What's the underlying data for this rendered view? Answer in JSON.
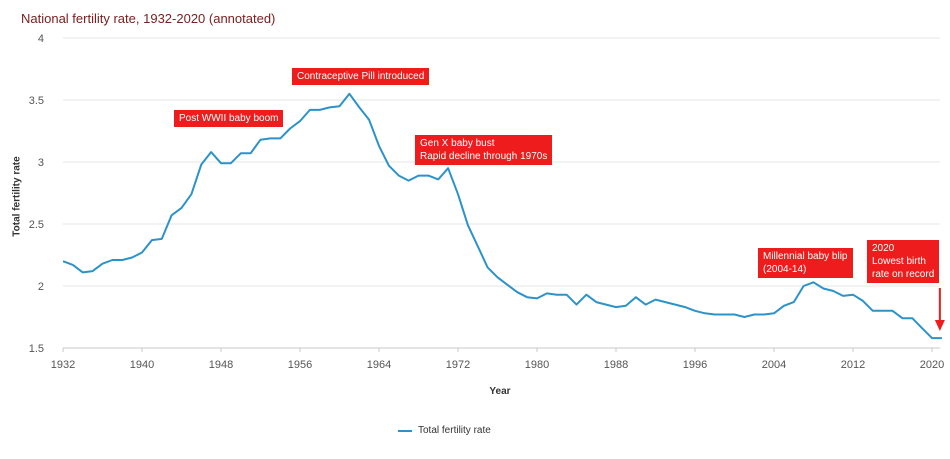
{
  "chart_data": {
    "type": "line",
    "title": "National fertility rate, 1932-2020 (annotated)",
    "xlabel": "Year",
    "ylabel": "Total fertility rate",
    "xlim": [
      1932,
      2021
    ],
    "ylim": [
      1.5,
      4
    ],
    "x_ticks": [
      "1932",
      "1940",
      "1948",
      "1956",
      "1964",
      "1972",
      "1980",
      "1988",
      "1996",
      "2004",
      "2012",
      "2020"
    ],
    "y_ticks": [
      "1.5",
      "2",
      "2.5",
      "3",
      "3.5",
      "4"
    ],
    "grid": "horizontal",
    "legend_position": "bottom",
    "color": "#2b93c9",
    "series": [
      {
        "name": "Total fertility rate",
        "x": [
          1932,
          1933,
          1934,
          1935,
          1936,
          1937,
          1938,
          1939,
          1940,
          1941,
          1942,
          1943,
          1944,
          1945,
          1946,
          1947,
          1948,
          1949,
          1950,
          1951,
          1952,
          1953,
          1954,
          1955,
          1956,
          1957,
          1958,
          1959,
          1960,
          1961,
          1962,
          1963,
          1964,
          1965,
          1966,
          1967,
          1968,
          1969,
          1970,
          1971,
          1972,
          1973,
          1974,
          1975,
          1976,
          1977,
          1978,
          1979,
          1980,
          1981,
          1982,
          1983,
          1984,
          1985,
          1986,
          1987,
          1988,
          1989,
          1990,
          1991,
          1992,
          1993,
          1994,
          1995,
          1996,
          1997,
          1998,
          1999,
          2000,
          2001,
          2002,
          2003,
          2004,
          2005,
          2006,
          2007,
          2008,
          2009,
          2010,
          2011,
          2012,
          2013,
          2014,
          2015,
          2016,
          2017,
          2018,
          2019,
          2020,
          2021
        ],
        "values": [
          2.2,
          2.17,
          2.11,
          2.12,
          2.18,
          2.21,
          2.21,
          2.23,
          2.27,
          2.37,
          2.38,
          2.57,
          2.63,
          2.74,
          2.98,
          3.08,
          2.99,
          2.99,
          3.07,
          3.07,
          3.18,
          3.19,
          3.19,
          3.27,
          3.33,
          3.42,
          3.42,
          3.44,
          3.45,
          3.55,
          3.44,
          3.34,
          3.13,
          2.97,
          2.89,
          2.85,
          2.89,
          2.89,
          2.86,
          2.95,
          2.74,
          2.49,
          2.32,
          2.15,
          2.07,
          2.01,
          1.95,
          1.91,
          1.9,
          1.94,
          1.93,
          1.93,
          1.85,
          1.93,
          1.87,
          1.85,
          1.83,
          1.84,
          1.91,
          1.85,
          1.89,
          1.87,
          1.85,
          1.83,
          1.8,
          1.78,
          1.77,
          1.77,
          1.77,
          1.75,
          1.77,
          1.77,
          1.78,
          1.84,
          1.87,
          2.0,
          2.03,
          1.98,
          1.96,
          1.92,
          1.93,
          1.88,
          1.8,
          1.8,
          1.8,
          1.74,
          1.74,
          1.66,
          1.58,
          1.58
        ]
      }
    ],
    "annotations": [
      {
        "id": "baby-boom",
        "lines": [
          "Post WWII baby boom"
        ]
      },
      {
        "id": "pill",
        "lines": [
          "Contraceptive Pill introduced"
        ]
      },
      {
        "id": "genx",
        "lines": [
          "Gen X baby bust",
          "Rapid decline through 1970s"
        ]
      },
      {
        "id": "millennial",
        "lines": [
          "Millennial baby blip",
          "(2004-14)"
        ]
      },
      {
        "id": "lowest",
        "lines": [
          "2020",
          "Lowest birth",
          "rate on record"
        ]
      }
    ]
  }
}
